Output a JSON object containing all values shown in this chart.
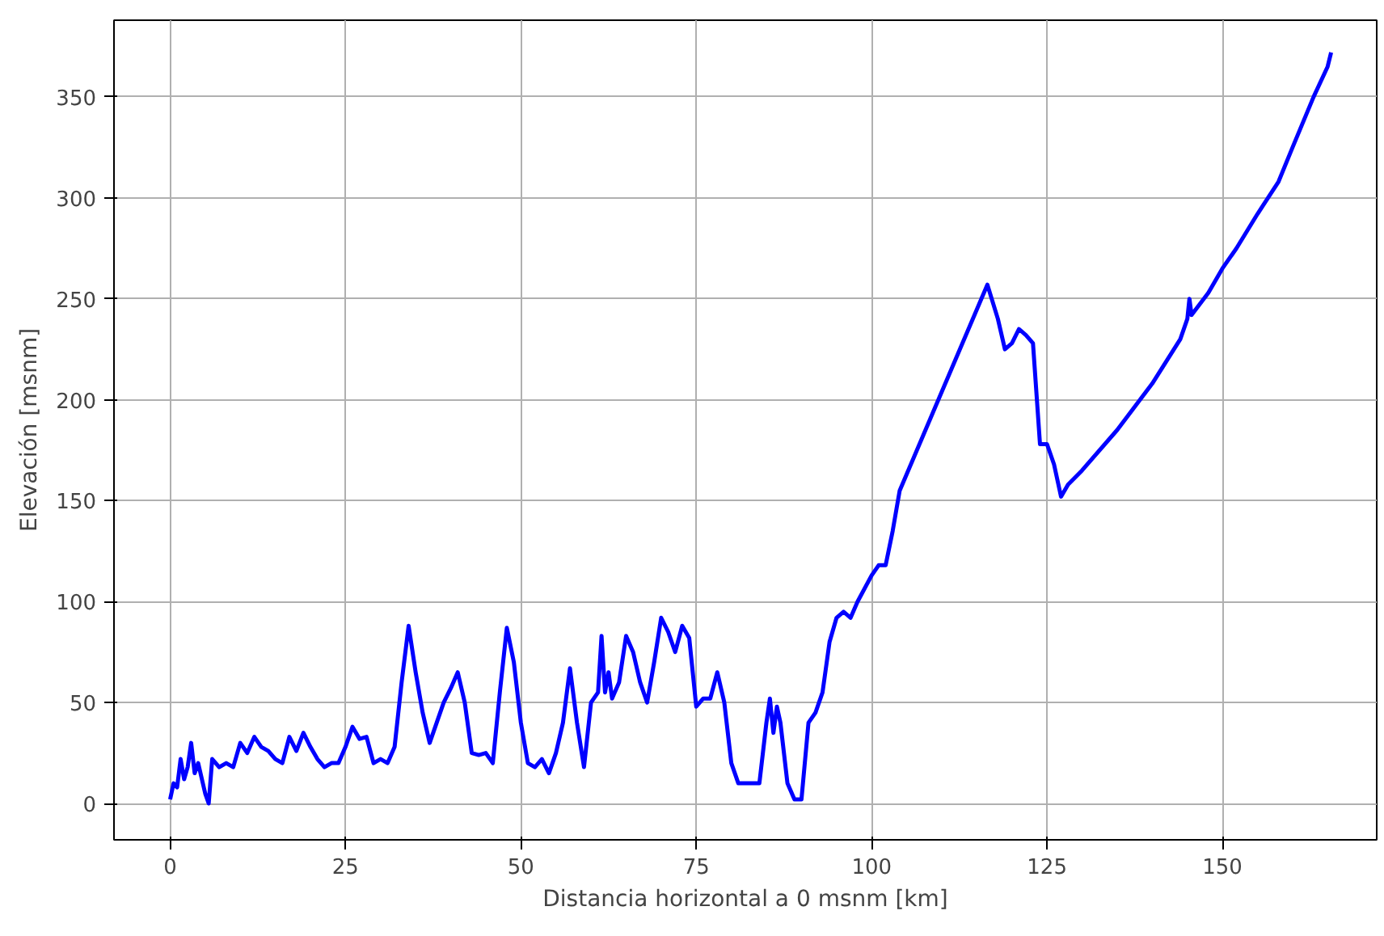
{
  "chart_data": {
    "type": "line",
    "xlabel": "Distancia horizontal a 0 msnm [km]",
    "ylabel": "Elevación [msnm]",
    "xlim": [
      -8,
      172
    ],
    "ylim": [
      -18,
      388
    ],
    "xticks": [
      0,
      25,
      50,
      75,
      100,
      125,
      150
    ],
    "yticks": [
      0,
      50,
      100,
      150,
      200,
      250,
      300,
      350
    ],
    "grid": true,
    "series": [
      {
        "color": "#0000ff",
        "x": [
          0,
          0.5,
          1,
          1.5,
          2,
          2.5,
          3,
          3.5,
          4,
          5,
          5.5,
          6,
          7,
          8,
          9,
          10,
          11,
          12,
          13,
          14,
          15,
          16,
          17,
          18,
          19,
          20,
          21,
          22,
          23,
          24,
          25,
          26,
          27,
          28,
          29,
          30,
          31,
          32,
          33,
          34,
          35,
          36,
          37,
          38,
          39,
          40,
          41,
          42,
          43,
          44,
          45,
          46,
          47,
          48,
          49,
          50,
          51,
          52,
          53,
          54,
          55,
          56,
          57,
          58,
          59,
          60,
          61,
          61.5,
          62,
          62.5,
          63,
          64,
          65,
          66,
          67,
          68,
          69,
          70,
          71,
          72,
          73,
          74,
          75,
          76,
          77,
          78,
          79,
          80,
          81,
          82,
          83,
          84,
          85,
          85.5,
          86,
          86.5,
          87,
          88,
          89,
          90,
          91,
          92,
          93,
          94,
          95,
          96,
          97,
          98,
          100,
          101,
          102,
          103,
          104,
          116.5,
          118,
          119,
          120,
          121,
          122,
          123,
          124,
          125,
          126,
          127,
          128,
          130,
          135,
          140,
          144,
          145,
          145.3,
          145.6,
          148,
          150,
          152,
          155,
          158,
          160,
          163,
          165,
          165.5
        ],
        "values": [
          2,
          10,
          8,
          22,
          12,
          18,
          30,
          15,
          20,
          5,
          0,
          22,
          18,
          20,
          18,
          30,
          25,
          33,
          28,
          26,
          22,
          20,
          33,
          26,
          35,
          28,
          22,
          18,
          20,
          20,
          28,
          38,
          32,
          33,
          20,
          22,
          20,
          28,
          60,
          88,
          65,
          45,
          30,
          40,
          50,
          57,
          65,
          50,
          25,
          24,
          25,
          20,
          55,
          87,
          70,
          40,
          20,
          18,
          22,
          15,
          25,
          40,
          67,
          40,
          18,
          50,
          55,
          83,
          55,
          65,
          52,
          60,
          83,
          75,
          60,
          50,
          70,
          92,
          85,
          75,
          88,
          82,
          48,
          52,
          52,
          65,
          50,
          20,
          10,
          10,
          10,
          10,
          40,
          52,
          35,
          48,
          40,
          10,
          2,
          2,
          40,
          45,
          55,
          80,
          92,
          95,
          92,
          100,
          113,
          118,
          118,
          135,
          155,
          257,
          240,
          225,
          228,
          235,
          232,
          228,
          178,
          178,
          168,
          152,
          158,
          165,
          185,
          208,
          230,
          240,
          250,
          242,
          253,
          265,
          275,
          292,
          308,
          325,
          350,
          365,
          372
        ]
      }
    ]
  }
}
